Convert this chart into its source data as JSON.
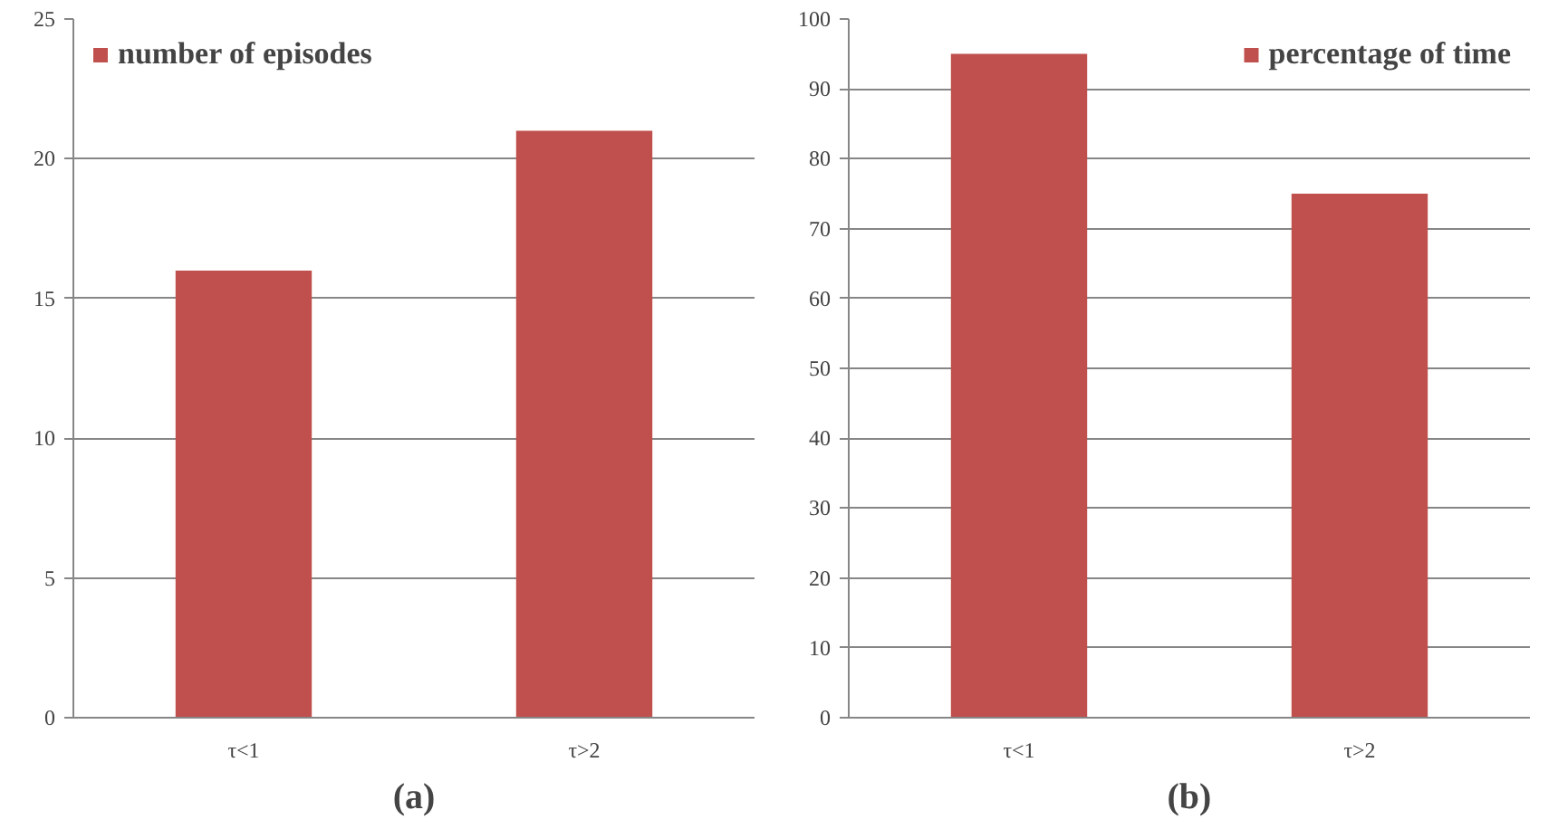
{
  "chart_data": [
    {
      "type": "bar",
      "xlabel": "(a)",
      "categories": [
        "τ<1",
        "τ>2"
      ],
      "series": [
        {
          "name": "number of episodes",
          "color": "#c0504d",
          "values": [
            16,
            21
          ]
        }
      ],
      "ylim": [
        0,
        25
      ],
      "yticks": [
        0,
        5,
        10,
        15,
        20,
        25
      ],
      "grid": "y",
      "legend": "top left"
    },
    {
      "type": "bar",
      "xlabel": "(b)",
      "categories": [
        "τ<1",
        "τ>2"
      ],
      "series": [
        {
          "name": "percentage of time",
          "color": "#c0504d",
          "values": [
            95,
            75
          ]
        }
      ],
      "ylim": [
        0,
        100
      ],
      "yticks": [
        0,
        10,
        20,
        30,
        40,
        50,
        60,
        70,
        80,
        90,
        100
      ],
      "grid": "y",
      "legend": "top right"
    }
  ]
}
